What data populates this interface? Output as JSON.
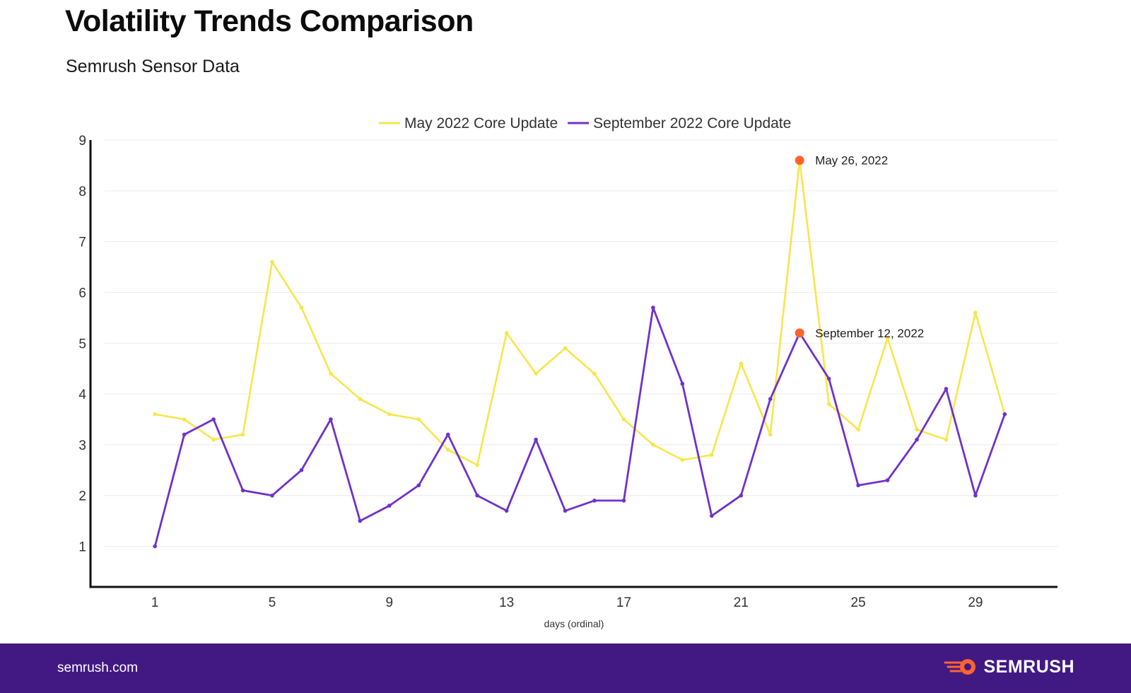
{
  "header": {
    "title": "Volatility Trends Comparison",
    "subtitle": "Semrush Sensor Data"
  },
  "footer": {
    "url": "semrush.com",
    "brand": "SEMRUSH",
    "brand_icon": "semrush-flame-logo"
  },
  "colors": {
    "may": "#f7e64b",
    "september": "#6f32c9",
    "highlight": "#ff642d",
    "footer_bg": "#421983"
  },
  "chart_data": {
    "type": "line",
    "title": "Volatility Trends Comparison",
    "subtitle": "Semrush Sensor Data",
    "xlabel": "days (ordinal)",
    "ylabel": "",
    "x": [
      1,
      2,
      3,
      4,
      5,
      6,
      7,
      8,
      9,
      10,
      11,
      12,
      13,
      14,
      15,
      16,
      17,
      18,
      19,
      20,
      21,
      22,
      23,
      24,
      25,
      26,
      27,
      28,
      29,
      30
    ],
    "xticks": [
      1,
      5,
      9,
      13,
      17,
      21,
      25,
      29
    ],
    "yticks": [
      1,
      2,
      3,
      4,
      5,
      6,
      7,
      8,
      9
    ],
    "xlim": [
      -1.2,
      31.8
    ],
    "ylim": [
      0.2,
      9
    ],
    "grid": true,
    "legend": "top-center",
    "series": [
      {
        "name": "May 2022 Core Update",
        "color": "#f7e64b",
        "values": [
          3.6,
          3.5,
          3.1,
          3.2,
          6.6,
          5.7,
          4.4,
          3.9,
          3.6,
          3.5,
          2.9,
          2.6,
          5.2,
          4.4,
          4.9,
          4.4,
          3.5,
          3.0,
          2.7,
          2.8,
          4.6,
          3.2,
          8.6,
          3.8,
          3.3,
          5.1,
          3.3,
          3.1,
          5.6,
          3.6
        ]
      },
      {
        "name": "September 2022 Core Update",
        "color": "#6f32c9",
        "values": [
          1.0,
          3.2,
          3.5,
          2.1,
          2.0,
          2.5,
          3.5,
          1.5,
          1.8,
          2.2,
          3.2,
          2.0,
          1.7,
          3.1,
          1.7,
          1.9,
          1.9,
          5.7,
          4.2,
          1.6,
          2.0,
          3.9,
          5.2,
          4.3,
          2.2,
          2.3,
          3.1,
          4.1,
          2.0,
          3.6
        ]
      }
    ],
    "annotations": [
      {
        "series": 0,
        "x": 23,
        "y": 8.6,
        "label": "May 26, 2022"
      },
      {
        "series": 1,
        "x": 23,
        "y": 5.2,
        "label": "September 12, 2022"
      }
    ]
  }
}
